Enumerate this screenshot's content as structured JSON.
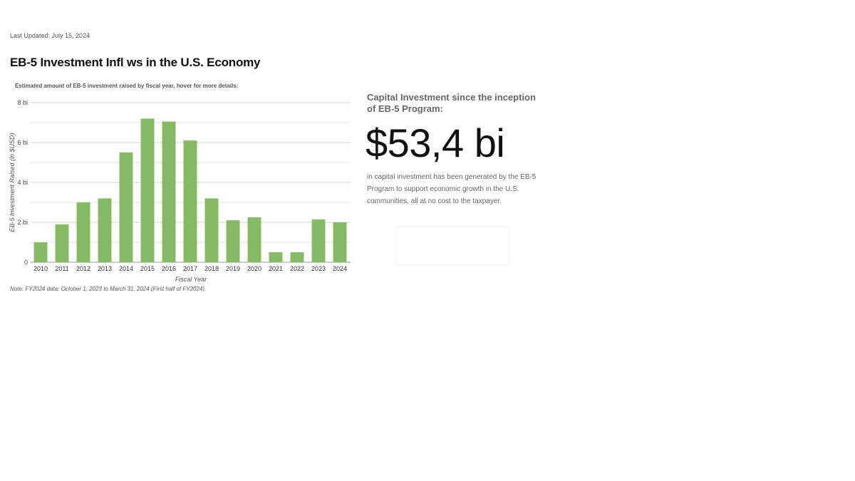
{
  "header": {
    "last_updated": "Last Updated: July 15, 2024",
    "title": "EB-5 Investment Infl  ws in the U.S. Economy"
  },
  "chart_data": {
    "type": "bar",
    "subtitle": "Estimated amount of EB-5 investment raised by fiscal year, hover for more details:",
    "xlabel": "Fiscal Year",
    "ylabel": "EB-5 Investment Raised (in $USD)",
    "categories": [
      "2010",
      "2011",
      "2012",
      "2013",
      "2014",
      "2015",
      "2016",
      "2017",
      "2018",
      "2019",
      "2020",
      "2021",
      "2022",
      "2023",
      "2024"
    ],
    "values": [
      1.0,
      1.9,
      3.0,
      3.2,
      5.5,
      7.2,
      7.05,
      6.1,
      3.2,
      2.1,
      2.25,
      0.5,
      0.5,
      2.15,
      2.0
    ],
    "ylim": [
      0,
      8
    ],
    "yticks": [
      {
        "value": 0,
        "label": "0"
      },
      {
        "value": 2,
        "label": "2 bi"
      },
      {
        "value": 4,
        "label": "4 bi"
      },
      {
        "value": 6,
        "label": "6 bi"
      },
      {
        "value": 8,
        "label": "8 bi"
      }
    ],
    "grid": true,
    "bar_color": "#85bb65",
    "note": "Note: FY2024 data: October 1, 2023 to March 31, 2024 (First half of FY2024)."
  },
  "stat": {
    "heading": "Capital Investment since the inception of EB-5 Program:",
    "value": "$53,4 bi",
    "description": "in capital investment has been generated by the EB-5 Program to support economic growth in the U.S. communities, all at no cost to the taxpayer."
  }
}
